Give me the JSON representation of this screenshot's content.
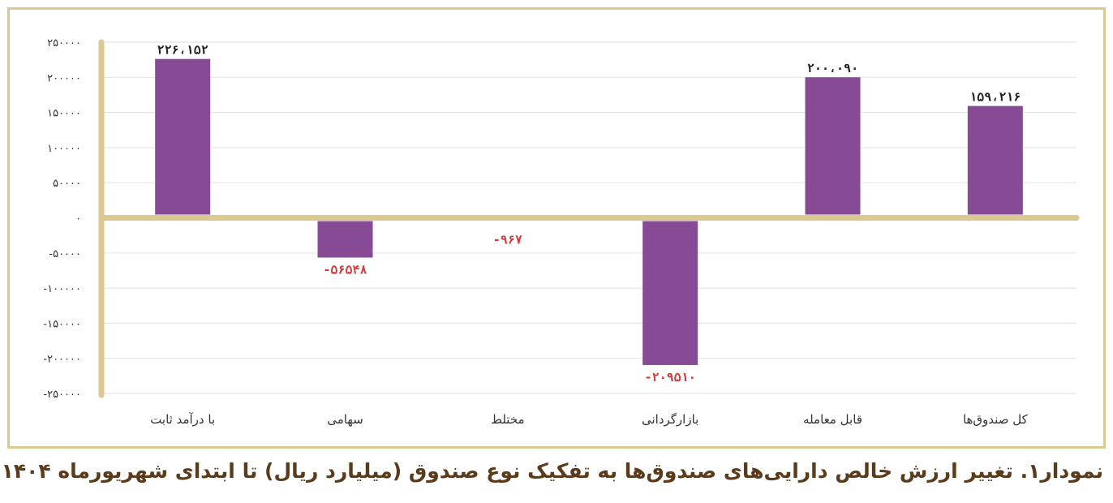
{
  "caption": "نمودار۱. تغییر ارزش خالص دارایی‌های صندوق‌ها به تفکیک نوع صندوق (میلیارد ریال) تا ابتدای شهریورماه ۱۴۰۴",
  "colors": {
    "bar": "#874a94",
    "axis": "#dcc891",
    "grid": "#e6e6e6",
    "positive_label": "#222222",
    "negative_label": "#d43a3a"
  },
  "chart_data": {
    "type": "bar",
    "title": "",
    "xlabel": "",
    "ylabel": "",
    "ylim": [
      -250000,
      250000
    ],
    "grid": true,
    "legend": "none",
    "categories": [
      "با درآمد ثابت",
      "سهامی",
      "مختلط",
      "بازارگردانی",
      "قابل معامله",
      "کل صندوق‌ها"
    ],
    "values": [
      226152,
      -56548,
      -967,
      -209510,
      200090,
      159216
    ],
    "value_labels": [
      "۲۲۶،۱۵۲",
      "-۵۶۵۴۸",
      "-۹۶۷",
      "-۲۰۹۵۱۰",
      "۲۰۰،۰۹۰",
      "۱۵۹،۲۱۶"
    ],
    "y_ticks": [
      250000,
      200000,
      150000,
      100000,
      50000,
      0,
      -50000,
      -100000,
      -150000,
      -200000,
      -250000
    ],
    "y_tick_labels": [
      "۲۵۰۰۰۰",
      "۲۰۰۰۰۰",
      "۱۵۰۰۰۰",
      "۱۰۰۰۰۰",
      "۵۰۰۰۰",
      "۰",
      "-۵۰۰۰۰",
      "-۱۰۰۰۰۰",
      "-۱۵۰۰۰۰",
      "-۲۰۰۰۰۰",
      "-۲۵۰۰۰۰"
    ]
  }
}
